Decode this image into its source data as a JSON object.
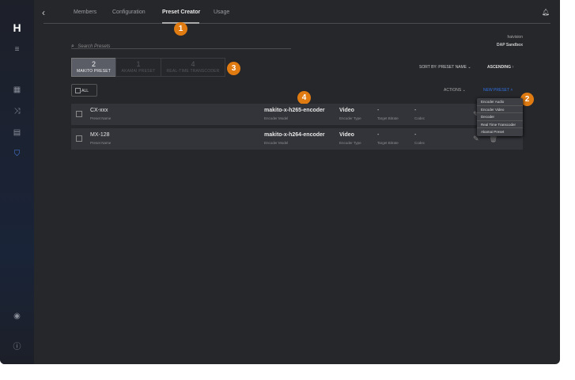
{
  "tabs": [
    {
      "label": "Members"
    },
    {
      "label": "Configuration"
    },
    {
      "label": "Preset Creator"
    },
    {
      "label": "Usage"
    }
  ],
  "search": {
    "placeholder": "Search Presets"
  },
  "org": {
    "name": "haivision",
    "workspace": "DAP Sandbox"
  },
  "segments": [
    {
      "count": "2",
      "label": "MAKITO PRESET"
    },
    {
      "count": "1",
      "label": "AKAMAI PRESET"
    },
    {
      "count": "4",
      "label": "REAL-TIME TRANSCODER"
    }
  ],
  "all_label": "ALL",
  "sort": {
    "label": "SORT BY: PRESET NAME",
    "order": "ASCENDING"
  },
  "actions_label": "ACTIONS",
  "new_preset_label": "NEW PRESET",
  "new_preset_menu": [
    "Encoder Audio",
    "Encoder Video",
    "Decoder",
    "Real Time Transcoder",
    "Akamai Preset"
  ],
  "rows": [
    {
      "name": "CX-xxx",
      "name_label": "Preset Name",
      "model": "makito-x-h265-encoder",
      "model_label": "Encoder Model",
      "type": "Video",
      "type_label": "Encoder Type",
      "bitrate": "-",
      "bitrate_label": "Target Bitrate",
      "codec": "-",
      "codec_label": "Codec"
    },
    {
      "name": "MX-128",
      "name_label": "Preset Name",
      "model": "makito-x-h264-encoder",
      "model_label": "Encoder Model",
      "type": "Video",
      "type_label": "Encoder Type",
      "bitrate": "-",
      "bitrate_label": "Target Bitrate",
      "codec": "-",
      "codec_label": "Codec"
    }
  ],
  "callouts": [
    "1",
    "2",
    "3",
    "4"
  ],
  "colors": {
    "accent": "#e07b12",
    "link": "#2f6fe0",
    "active_nav": "#4a7fe0"
  }
}
